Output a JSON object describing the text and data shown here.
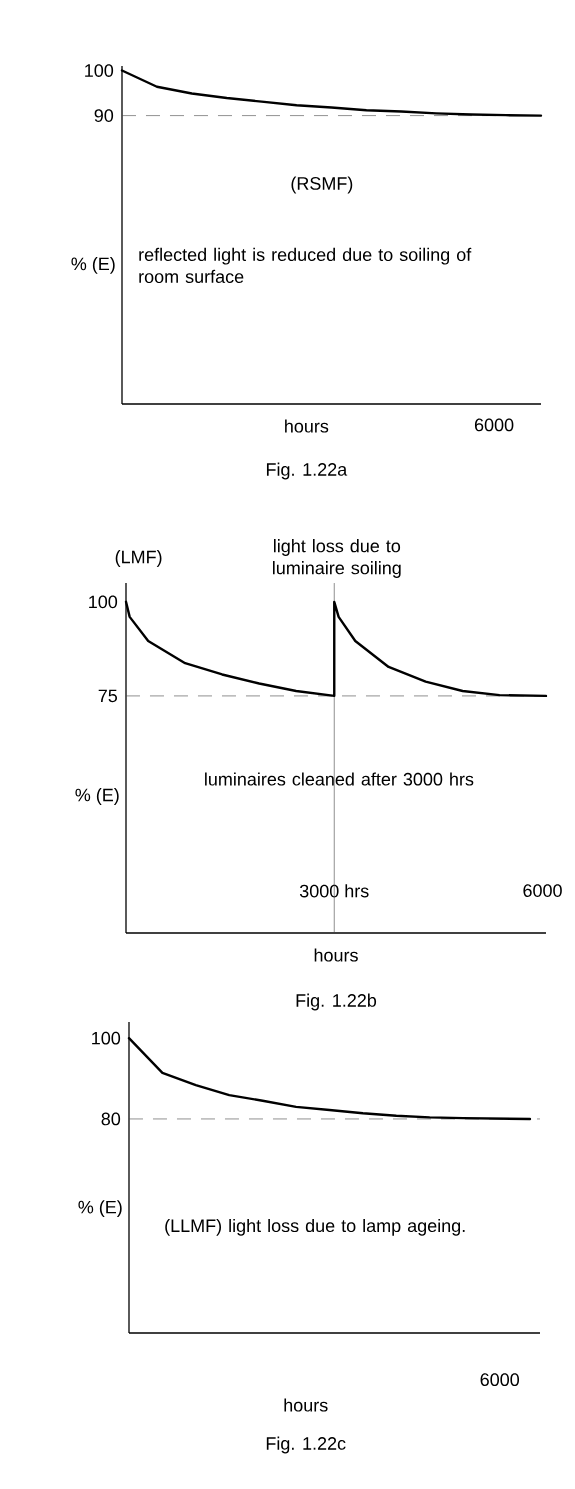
{
  "chart_data": [
    {
      "type": "line",
      "title": "Fig. 1.22a",
      "xlabel": "hours",
      "ylabel": "% (E)",
      "color": "#000000",
      "categories": [
        null,
        null,
        null,
        null,
        null,
        null,
        null,
        null,
        null,
        null,
        null,
        null,
        null
      ],
      "values": [
        100,
        96.4,
        94.9,
        93.9,
        93.1,
        92.3,
        91.8,
        91.2,
        90.9,
        90.5,
        90.25,
        90.1,
        90
      ],
      "ylim": [
        26,
        101
      ],
      "yticks": [
        90,
        100
      ],
      "ref_lines": [
        {
          "axis": "y",
          "value": 90,
          "color": "#444444",
          "line_style": "dashed"
        }
      ],
      "annotations": [
        "(RSMF)",
        "reflected light is reduced due to soiling of room surface",
        "6000"
      ]
    },
    {
      "type": "line",
      "title": "Fig. 1.22b",
      "xlabel": "hours",
      "ylabel": "% (E)",
      "color": "#000000",
      "x": [
        0,
        53,
        320,
        852,
        1385,
        1918,
        2451,
        3000,
        3000,
        3063,
        3303,
        3783,
        4316,
        4849,
        5381,
        6050
      ],
      "values": [
        100,
        96.0,
        89.6,
        83.7,
        80.7,
        78.3,
        76.3,
        75,
        100,
        96.0,
        89.6,
        82.7,
        78.8,
        76.3,
        75.2,
        75
      ],
      "xlim": [
        0,
        6050
      ],
      "ylim": [
        12,
        105
      ],
      "xticks": [
        {
          "value": 3000,
          "label": "3000 hrs"
        },
        6000
      ],
      "yticks": [
        75,
        100
      ],
      "ref_lines": [
        {
          "axis": "y",
          "value": 75,
          "color": "#444444",
          "line_style": "dashed"
        },
        {
          "axis": "x",
          "value": 3000,
          "color": "#444444",
          "line_style": "solid"
        }
      ],
      "annotations": [
        "(LMF)",
        "light loss due to luminaire soiling",
        "luminaires cleaned after 3000 hrs"
      ]
    },
    {
      "type": "line",
      "title": "Fig. 1.22c",
      "xlabel": "hours",
      "ylabel": "% (E)",
      "color": "#000000",
      "categories": [
        null,
        null,
        null,
        null,
        null,
        null,
        null,
        null,
        null,
        null,
        null,
        null,
        null
      ],
      "values": [
        100,
        91.4,
        88.4,
        85.9,
        84.5,
        83.0,
        82.2,
        81.4,
        80.8,
        80.4,
        80.2,
        80.1,
        80
      ],
      "ylim": [
        27,
        104
      ],
      "yticks": [
        80,
        100
      ],
      "ref_lines": [
        {
          "axis": "y",
          "value": 80,
          "color": "#444444",
          "line_style": "dashed"
        }
      ],
      "annotations": [
        "(LLMF) light loss due to lamp ageing.",
        "6000"
      ]
    }
  ]
}
